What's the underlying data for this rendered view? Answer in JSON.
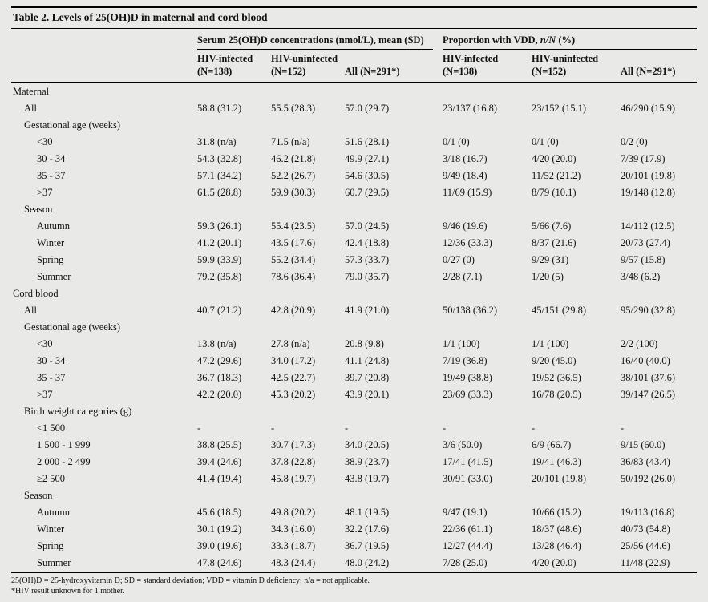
{
  "table": {
    "title": "Table 2. Levels of 25(OH)D in maternal and cord blood",
    "groups": [
      {
        "label": "Serum 25(OH)D concentrations (nmol/L), mean (SD)"
      },
      {
        "pre": "Proportion with VDD, ",
        "italic": "n/N",
        "post": " (%)"
      }
    ],
    "columns": [
      {
        "line1": "HIV-infected",
        "line2": "(N=138)"
      },
      {
        "line1": "HIV-uninfected",
        "line2": "(N=152)"
      },
      {
        "line1": "",
        "line2": "All (N=291*)"
      },
      {
        "line1": "HIV-infected",
        "line2": "(N=138)"
      },
      {
        "line1": "HIV-uninfected",
        "line2": "(N=152)"
      },
      {
        "line1": "",
        "line2": "All (N=291*)"
      }
    ],
    "rows": [
      {
        "type": "section",
        "indent": 0,
        "label": "Maternal"
      },
      {
        "type": "data",
        "indent": 1,
        "label": "All",
        "values": [
          "58.8 (31.2)",
          "55.5 (28.3)",
          "57.0 (29.7)",
          "23/137 (16.8)",
          "23/152 (15.1)",
          "46/290 (15.9)"
        ]
      },
      {
        "type": "subsection",
        "indent": 1,
        "label": "Gestational age (weeks)"
      },
      {
        "type": "data",
        "indent": 2,
        "label": "<30",
        "values": [
          "31.8 (n/a)",
          "71.5 (n/a)",
          "51.6 (28.1)",
          "0/1 (0)",
          "0/1 (0)",
          "0/2 (0)"
        ]
      },
      {
        "type": "data",
        "indent": 2,
        "label": "30 - 34",
        "values": [
          "54.3 (32.8)",
          "46.2 (21.8)",
          "49.9 (27.1)",
          "3/18 (16.7)",
          "4/20 (20.0)",
          "7/39 (17.9)"
        ]
      },
      {
        "type": "data",
        "indent": 2,
        "label": "35 - 37",
        "values": [
          "57.1 (34.2)",
          "52.2 (26.7)",
          "54.6 (30.5)",
          "9/49 (18.4)",
          "11/52 (21.2)",
          "20/101 (19.8)"
        ]
      },
      {
        "type": "data",
        "indent": 2,
        "label": ">37",
        "values": [
          "61.5 (28.8)",
          "59.9 (30.3)",
          "60.7 (29.5)",
          "11/69 (15.9)",
          "8/79 (10.1)",
          "19/148 (12.8)"
        ]
      },
      {
        "type": "subsection",
        "indent": 1,
        "label": "Season"
      },
      {
        "type": "data",
        "indent": 2,
        "label": "Autumn",
        "values": [
          "59.3 (26.1)",
          "55.4 (23.5)",
          "57.0 (24.5)",
          "9/46 (19.6)",
          "5/66 (7.6)",
          "14/112 (12.5)"
        ]
      },
      {
        "type": "data",
        "indent": 2,
        "label": "Winter",
        "values": [
          "41.2 (20.1)",
          "43.5 (17.6)",
          "42.4 (18.8)",
          "12/36 (33.3)",
          "8/37 (21.6)",
          "20/73 (27.4)"
        ]
      },
      {
        "type": "data",
        "indent": 2,
        "label": "Spring",
        "values": [
          "59.9 (33.9)",
          "55.2 (34.4)",
          "57.3 (33.7)",
          "0/27 (0)",
          "9/29 (31)",
          "9/57 (15.8)"
        ]
      },
      {
        "type": "data",
        "indent": 2,
        "label": "Summer",
        "values": [
          "79.2 (35.8)",
          "78.6 (36.4)",
          "79.0 (35.7)",
          "2/28 (7.1)",
          "1/20 (5)",
          "3/48 (6.2)"
        ]
      },
      {
        "type": "section",
        "indent": 0,
        "label": "Cord blood"
      },
      {
        "type": "data",
        "indent": 1,
        "label": "All",
        "values": [
          "40.7 (21.2)",
          "42.8 (20.9)",
          "41.9 (21.0)",
          "50/138 (36.2)",
          "45/151 (29.8)",
          "95/290 (32.8)"
        ]
      },
      {
        "type": "subsection",
        "indent": 1,
        "label": "Gestational age (weeks)"
      },
      {
        "type": "data",
        "indent": 2,
        "label": "<30",
        "values": [
          "13.8 (n/a)",
          "27.8 (n/a)",
          "20.8 (9.8)",
          "1/1 (100)",
          "1/1 (100)",
          "2/2 (100)"
        ]
      },
      {
        "type": "data",
        "indent": 2,
        "label": "30 - 34",
        "values": [
          "47.2 (29.6)",
          "34.0 (17.2)",
          "41.1 (24.8)",
          "7/19 (36.8)",
          "9/20 (45.0)",
          "16/40 (40.0)"
        ]
      },
      {
        "type": "data",
        "indent": 2,
        "label": "35 - 37",
        "values": [
          "36.7 (18.3)",
          "42.5 (22.7)",
          "39.7 (20.8)",
          "19/49 (38.8)",
          "19/52 (36.5)",
          "38/101 (37.6)"
        ]
      },
      {
        "type": "data",
        "indent": 2,
        "label": ">37",
        "values": [
          "42.2 (20.0)",
          "45.3 (20.2)",
          "43.9 (20.1)",
          "23/69 (33.3)",
          "16/78 (20.5)",
          "39/147 (26.5)"
        ]
      },
      {
        "type": "subsection",
        "indent": 1,
        "label": "Birth weight categories (g)"
      },
      {
        "type": "data",
        "indent": 2,
        "label": "<1 500",
        "values": [
          "-",
          "-",
          "-",
          "-",
          "-",
          "-"
        ]
      },
      {
        "type": "data",
        "indent": 2,
        "label": "1 500 - 1 999",
        "values": [
          "38.8 (25.5)",
          "30.7 (17.3)",
          "34.0 (20.5)",
          "3/6 (50.0)",
          "6/9 (66.7)",
          "9/15 (60.0)"
        ]
      },
      {
        "type": "data",
        "indent": 2,
        "label": "2 000 - 2 499",
        "values": [
          "39.4 (24.6)",
          "37.8 (22.8)",
          "38.9 (23.7)",
          "17/41 (41.5)",
          "19/41 (46.3)",
          "36/83 (43.4)"
        ]
      },
      {
        "type": "data",
        "indent": 2,
        "label": "≥2 500",
        "values": [
          "41.4 (19.4)",
          "45.8 (19.7)",
          "43.8 (19.7)",
          "30/91 (33.0)",
          "20/101 (19.8)",
          "50/192 (26.0)"
        ]
      },
      {
        "type": "subsection",
        "indent": 1,
        "label": "Season"
      },
      {
        "type": "data",
        "indent": 2,
        "label": "Autumn",
        "values": [
          "45.6 (18.5)",
          "49.8 (20.2)",
          "48.1 (19.5)",
          "9/47 (19.1)",
          "10/66 (15.2)",
          "19/113 (16.8)"
        ]
      },
      {
        "type": "data",
        "indent": 2,
        "label": "Winter",
        "values": [
          "30.1 (19.2)",
          "34.3 (16.0)",
          "32.2 (17.6)",
          "22/36 (61.1)",
          "18/37 (48.6)",
          "40/73 (54.8)"
        ]
      },
      {
        "type": "data",
        "indent": 2,
        "label": "Spring",
        "values": [
          "39.0 (19.6)",
          "33.3 (18.7)",
          "36.7 (19.5)",
          "12/27 (44.4)",
          "13/28 (46.4)",
          "25/56 (44.6)"
        ]
      },
      {
        "type": "data",
        "indent": 2,
        "label": "Summer",
        "values": [
          "47.8 (24.6)",
          "48.3 (24.4)",
          "48.0 (24.2)",
          "7/28 (25.0)",
          "4/20 (20.0)",
          "11/48 (22.9)"
        ]
      }
    ],
    "footnotes": [
      "25(OH)D = 25-hydroxyvitamin D; SD = standard deviation; VDD = vitamin D deficiency; n/a = not applicable.",
      "*HIV result unknown for 1 mother."
    ]
  }
}
